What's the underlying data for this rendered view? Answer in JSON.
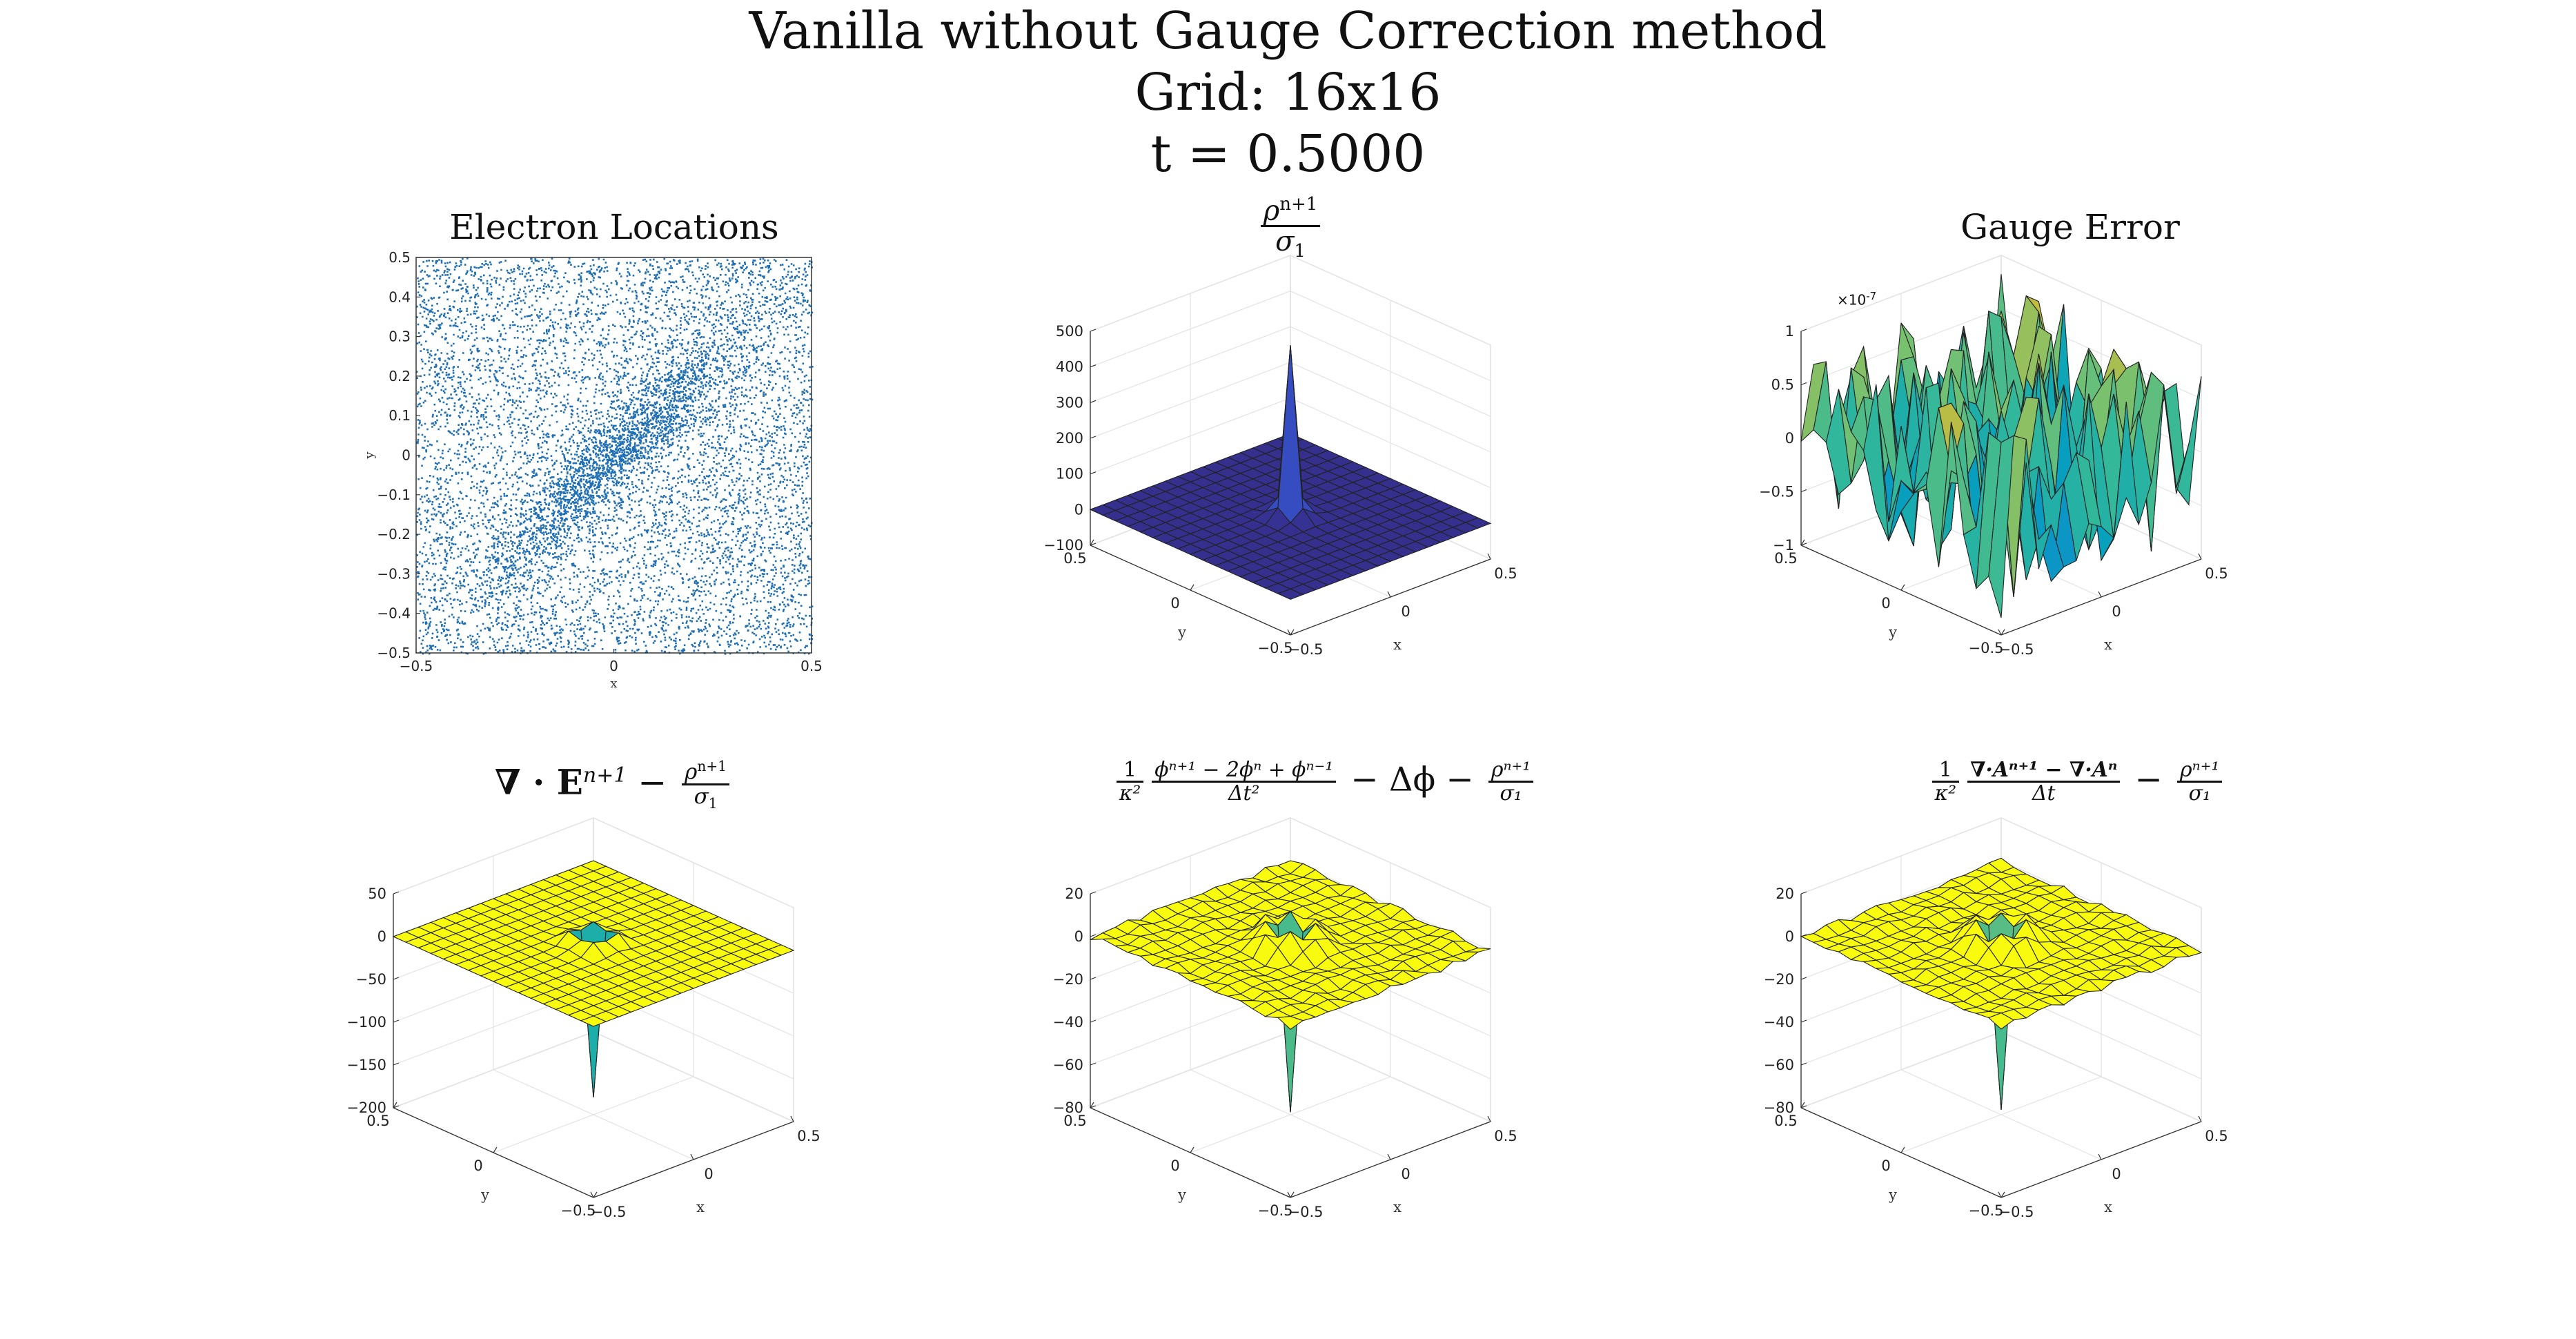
{
  "figure": {
    "title_line1": "Vanilla without Gauge Correction method",
    "title_line2": "Grid: 16x16",
    "title_line3": "t = 0.5000"
  },
  "colors": {
    "scatter": "#1f6fb4",
    "surface_blue": "#3f2fd0",
    "surface_yellow": "#f2c12e",
    "surface_teal": "#23b7a6",
    "grid": "#e3e3e3",
    "axis": "#333333"
  },
  "chart_data": [
    {
      "type": "scatter",
      "title": "Electron Locations",
      "xlabel": "x",
      "ylabel": "y",
      "xlim": [
        -0.5,
        0.5
      ],
      "ylim": [
        -0.5,
        0.5
      ],
      "xticks": [
        "-0.5",
        "0",
        "0.5"
      ],
      "yticks": [
        "0.5",
        "0.4",
        "0.3",
        "0.2",
        "0.1",
        "0",
        "-0.1",
        "-0.2",
        "-0.3",
        "-0.4",
        "-0.5"
      ],
      "grid": false,
      "description_points": "dense uniform particle cloud with denser diagonal band through origin"
    },
    {
      "type": "surface",
      "title_num": "ρ",
      "title_num_sup": "n+1",
      "title_den": "σ",
      "title_den_sub": "1",
      "xlabel": "x",
      "ylabel": "y",
      "zlim": [
        -100,
        500
      ],
      "zticks": [
        "500",
        "400",
        "300",
        "200",
        "100",
        "0",
        "-100"
      ],
      "xticks": [
        "-0.5",
        "0",
        "0.5"
      ],
      "yticks": [
        "0.5",
        "0",
        "-0.5"
      ],
      "peak_value": 440,
      "base_value": 0,
      "colormap": "parula"
    },
    {
      "type": "surface",
      "title": "Gauge Error",
      "scale_label": "×10",
      "scale_exp": "-7",
      "xlabel": "x",
      "ylabel": "y",
      "zlim": [
        -1,
        1
      ],
      "zticks": [
        "1",
        "0.5",
        "0",
        "-0.5",
        "-1"
      ],
      "xticks": [
        "-0.5",
        "0",
        "0.5"
      ],
      "yticks": [
        "0.5",
        "0",
        "-0.5"
      ],
      "colormap": "parula"
    },
    {
      "type": "surface",
      "title_lhs": "∇ · E",
      "title_lhs_sup": "n+1",
      "title_minus": "−",
      "title_num": "ρ",
      "title_num_sup": "n+1",
      "title_den": "σ",
      "title_den_sub": "1",
      "xlabel": "x",
      "ylabel": "y",
      "zlim": [
        -200,
        50
      ],
      "zticks": [
        "50",
        "0",
        "-50",
        "-100",
        "-150",
        "-200"
      ],
      "xticks": [
        "-0.5",
        "0",
        "0.5"
      ],
      "yticks": [
        "0.5",
        "0",
        "-0.5"
      ],
      "min_value": -180,
      "colormap": "parula"
    },
    {
      "type": "surface",
      "title_coef_num": "1",
      "title_coef_den": "κ²",
      "title_num": "ϕⁿ⁺¹ − 2ϕⁿ + ϕⁿ⁻¹",
      "title_den": "Δt²",
      "title_mid": "− Δϕ −",
      "title_rho_num": "ρⁿ⁺¹",
      "title_rho_den": "σ₁",
      "xlabel": "x",
      "ylabel": "y",
      "zlim": [
        -80,
        20
      ],
      "zticks": [
        "20",
        "0",
        "-20",
        "-40",
        "-60",
        "-80"
      ],
      "xticks": [
        "-0.5",
        "0",
        "0.5"
      ],
      "yticks": [
        "0.5",
        "0",
        "-0.5"
      ],
      "min_value": -78,
      "colormap": "parula"
    },
    {
      "type": "surface",
      "title_coef_num": "1",
      "title_coef_den": "κ²",
      "title_num": "∇·Aⁿ⁺¹ − ∇·Aⁿ",
      "title_den": "Δt",
      "title_mid": "−",
      "title_rho_num": "ρⁿ⁺¹",
      "title_rho_den": "σ₁",
      "xlabel": "x",
      "ylabel": "y",
      "zlim": [
        -80,
        20
      ],
      "zticks": [
        "20",
        "0",
        "-20",
        "-40",
        "-60",
        "-80"
      ],
      "xticks": [
        "-0.5",
        "0",
        "0.5"
      ],
      "yticks": [
        "0.5",
        "0",
        "-0.5"
      ],
      "min_value": -78,
      "colormap": "parula"
    }
  ]
}
